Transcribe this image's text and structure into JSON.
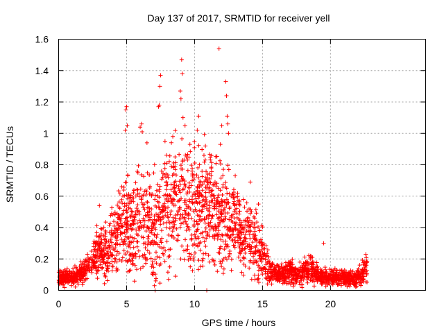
{
  "chart_data": {
    "type": "scatter",
    "title": "Day 137 of 2017, SRMTID for receiver yell",
    "xlabel": "GPS time / hours",
    "ylabel": "SRMTID / TECUs",
    "xlim": [
      0,
      27
    ],
    "ylim": [
      0,
      1.6
    ],
    "xticks": [
      0,
      5,
      10,
      15,
      20
    ],
    "xtick_labels": [
      "0",
      "5",
      "10",
      "15",
      "20"
    ],
    "yticks": [
      0,
      0.2,
      0.4,
      0.6,
      0.8,
      1.0,
      1.2,
      1.4,
      1.6
    ],
    "ytick_labels": [
      "0",
      "0.2",
      "0.4",
      "0.6",
      "0.8",
      "1",
      "1.2",
      "1.4",
      "1.6"
    ],
    "grid": true,
    "marker": "+",
    "color": "#ff0000",
    "envelope": {
      "hours": [
        0,
        0.5,
        1,
        1.5,
        2,
        2.5,
        3,
        3.5,
        4,
        4.5,
        5,
        5.5,
        6,
        6.5,
        7,
        7.5,
        8,
        8.5,
        9,
        9.5,
        10,
        10.5,
        11,
        11.5,
        12,
        12.5,
        13,
        13.5,
        14,
        14.5,
        15,
        15.5,
        16,
        16.5,
        17,
        17.5,
        18,
        18.5,
        19,
        19.5,
        20,
        20.5,
        21,
        21.5,
        22,
        22.5,
        22.7
      ],
      "median": [
        0.07,
        0.08,
        0.08,
        0.1,
        0.14,
        0.2,
        0.26,
        0.24,
        0.32,
        0.4,
        0.44,
        0.38,
        0.45,
        0.44,
        0.35,
        0.5,
        0.55,
        0.58,
        0.6,
        0.55,
        0.52,
        0.55,
        0.56,
        0.5,
        0.48,
        0.46,
        0.42,
        0.38,
        0.35,
        0.28,
        0.22,
        0.13,
        0.11,
        0.1,
        0.12,
        0.1,
        0.12,
        0.14,
        0.1,
        0.08,
        0.09,
        0.08,
        0.08,
        0.07,
        0.08,
        0.12,
        0.14
      ],
      "spread": [
        0.03,
        0.03,
        0.03,
        0.04,
        0.05,
        0.06,
        0.1,
        0.1,
        0.12,
        0.14,
        0.18,
        0.18,
        0.2,
        0.2,
        0.2,
        0.22,
        0.22,
        0.22,
        0.22,
        0.22,
        0.22,
        0.22,
        0.22,
        0.2,
        0.2,
        0.18,
        0.16,
        0.16,
        0.14,
        0.12,
        0.1,
        0.05,
        0.04,
        0.04,
        0.05,
        0.05,
        0.05,
        0.06,
        0.04,
        0.03,
        0.03,
        0.03,
        0.03,
        0.03,
        0.03,
        0.05,
        0.05
      ]
    },
    "peaks": [
      {
        "x": 5.0,
        "y": 1.17
      },
      {
        "x": 4.95,
        "y": 1.15
      },
      {
        "x": 5.05,
        "y": 1.05
      },
      {
        "x": 4.9,
        "y": 1.02
      },
      {
        "x": 6.1,
        "y": 1.06
      },
      {
        "x": 6.0,
        "y": 1.04
      },
      {
        "x": 6.15,
        "y": 1.01
      },
      {
        "x": 7.4,
        "y": 1.18
      },
      {
        "x": 7.5,
        "y": 1.37
      },
      {
        "x": 7.45,
        "y": 1.3
      },
      {
        "x": 7.35,
        "y": 1.17
      },
      {
        "x": 9.05,
        "y": 1.47
      },
      {
        "x": 9.1,
        "y": 1.38
      },
      {
        "x": 8.95,
        "y": 1.27
      },
      {
        "x": 9.0,
        "y": 1.22
      },
      {
        "x": 9.15,
        "y": 1.1
      },
      {
        "x": 9.3,
        "y": 1.05
      },
      {
        "x": 10.3,
        "y": 1.11
      },
      {
        "x": 10.2,
        "y": 1.02
      },
      {
        "x": 11.8,
        "y": 1.54
      },
      {
        "x": 12.3,
        "y": 1.33
      },
      {
        "x": 12.35,
        "y": 1.24
      },
      {
        "x": 12.4,
        "y": 1.11
      },
      {
        "x": 12.45,
        "y": 1.06
      },
      {
        "x": 12.0,
        "y": 1.05
      },
      {
        "x": 12.5,
        "y": 1.0
      },
      {
        "x": 11.9,
        "y": 0.93
      },
      {
        "x": 6.5,
        "y": 0.94
      },
      {
        "x": 8.4,
        "y": 0.98
      },
      {
        "x": 10.8,
        "y": 0.92
      },
      {
        "x": 14.1,
        "y": 0.69
      },
      {
        "x": 3.0,
        "y": 0.54
      },
      {
        "x": 14.7,
        "y": 0.55
      },
      {
        "x": 19.5,
        "y": 0.3
      },
      {
        "x": 22.6,
        "y": 0.23
      }
    ],
    "lows": [
      {
        "x": 7.1,
        "y": 0.0
      },
      {
        "x": 7.05,
        "y": 0.03
      },
      {
        "x": 7.15,
        "y": 0.06
      },
      {
        "x": 6.95,
        "y": 0.1
      },
      {
        "x": 8.6,
        "y": 0.09
      },
      {
        "x": 10.9,
        "y": 0.0
      }
    ]
  }
}
